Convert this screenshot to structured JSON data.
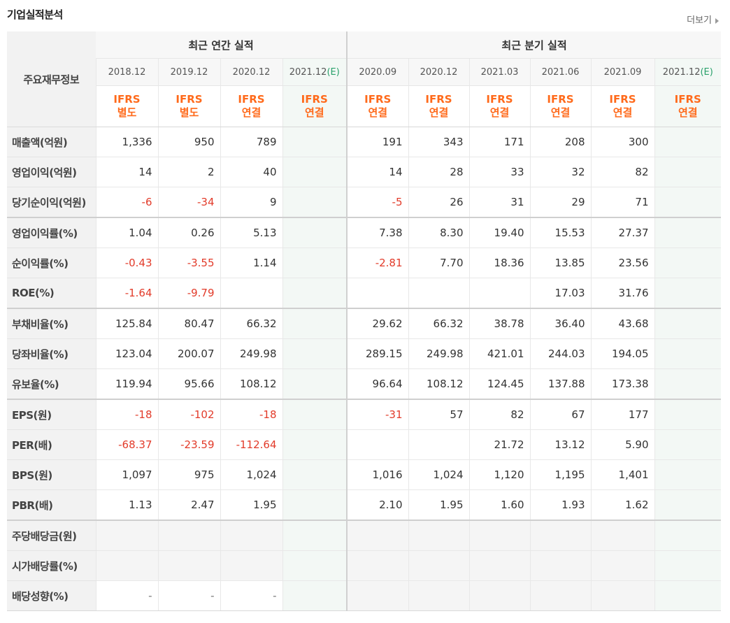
{
  "header": {
    "title": "기업실적분석",
    "more_label": "더보기"
  },
  "table": {
    "corner_label": "주요재무정보",
    "groups": [
      {
        "label": "최근 연간 실적"
      },
      {
        "label": "최근 분기 실적"
      }
    ],
    "periods": [
      {
        "label": "2018.12",
        "est": ""
      },
      {
        "label": "2019.12",
        "est": ""
      },
      {
        "label": "2020.12",
        "est": ""
      },
      {
        "label": "2021.12",
        "est": "(E)"
      },
      {
        "label": "2020.09",
        "est": ""
      },
      {
        "label": "2020.12",
        "est": ""
      },
      {
        "label": "2021.03",
        "est": ""
      },
      {
        "label": "2021.06",
        "est": ""
      },
      {
        "label": "2021.09",
        "est": ""
      },
      {
        "label": "2021.12",
        "est": "(E)"
      }
    ],
    "ifrs": [
      {
        "l1": "IFRS",
        "l2": "별도"
      },
      {
        "l1": "IFRS",
        "l2": "별도"
      },
      {
        "l1": "IFRS",
        "l2": "연결"
      },
      {
        "l1": "IFRS",
        "l2": "연결"
      },
      {
        "l1": "IFRS",
        "l2": "연결"
      },
      {
        "l1": "IFRS",
        "l2": "연결"
      },
      {
        "l1": "IFRS",
        "l2": "연결"
      },
      {
        "l1": "IFRS",
        "l2": "연결"
      },
      {
        "l1": "IFRS",
        "l2": "연결"
      },
      {
        "l1": "IFRS",
        "l2": "연결"
      }
    ],
    "rows": [
      {
        "label": "매출액(억원)",
        "values": [
          "1,336",
          "950",
          "789",
          "",
          "191",
          "343",
          "171",
          "208",
          "300",
          ""
        ]
      },
      {
        "label": "영업이익(억원)",
        "values": [
          "14",
          "2",
          "40",
          "",
          "14",
          "28",
          "33",
          "32",
          "82",
          ""
        ]
      },
      {
        "label": "당기순이익(억원)",
        "values": [
          "-6",
          "-34",
          "9",
          "",
          "-5",
          "26",
          "31",
          "29",
          "71",
          ""
        ]
      },
      {
        "label": "영업이익률(%)",
        "values": [
          "1.04",
          "0.26",
          "5.13",
          "",
          "7.38",
          "8.30",
          "19.40",
          "15.53",
          "27.37",
          ""
        ]
      },
      {
        "label": "순이익률(%)",
        "values": [
          "-0.43",
          "-3.55",
          "1.14",
          "",
          "-2.81",
          "7.70",
          "18.36",
          "13.85",
          "23.56",
          ""
        ]
      },
      {
        "label": "ROE(%)",
        "values": [
          "-1.64",
          "-9.79",
          "",
          "",
          "",
          "",
          "",
          "17.03",
          "31.76",
          ""
        ]
      },
      {
        "label": "부채비율(%)",
        "values": [
          "125.84",
          "80.47",
          "66.32",
          "",
          "29.62",
          "66.32",
          "38.78",
          "36.40",
          "43.68",
          ""
        ]
      },
      {
        "label": "당좌비율(%)",
        "values": [
          "123.04",
          "200.07",
          "249.98",
          "",
          "289.15",
          "249.98",
          "421.01",
          "244.03",
          "194.05",
          ""
        ]
      },
      {
        "label": "유보율(%)",
        "values": [
          "119.94",
          "95.66",
          "108.12",
          "",
          "96.64",
          "108.12",
          "124.45",
          "137.88",
          "173.38",
          ""
        ]
      },
      {
        "label": "EPS(원)",
        "values": [
          "-18",
          "-102",
          "-18",
          "",
          "-31",
          "57",
          "82",
          "67",
          "177",
          ""
        ]
      },
      {
        "label": "PER(배)",
        "values": [
          "-68.37",
          "-23.59",
          "-112.64",
          "",
          "",
          "",
          "21.72",
          "13.12",
          "5.90",
          ""
        ]
      },
      {
        "label": "BPS(원)",
        "values": [
          "1,097",
          "975",
          "1,024",
          "",
          "1,016",
          "1,024",
          "1,120",
          "1,195",
          "1,401",
          ""
        ]
      },
      {
        "label": "PBR(배)",
        "values": [
          "1.13",
          "2.47",
          "1.95",
          "",
          "2.10",
          "1.95",
          "1.60",
          "1.93",
          "1.62",
          ""
        ]
      },
      {
        "label": "주당배당금(원)",
        "values": [
          "",
          "",
          "",
          "",
          "",
          "",
          "",
          "",
          "",
          ""
        ]
      },
      {
        "label": "시가배당률(%)",
        "values": [
          "",
          "",
          "",
          "",
          "",
          "",
          "",
          "",
          "",
          ""
        ]
      },
      {
        "label": "배당성향(%)",
        "values": [
          "-",
          "-",
          "-",
          "",
          "",
          "",
          "",
          "",
          "",
          ""
        ]
      }
    ]
  }
}
